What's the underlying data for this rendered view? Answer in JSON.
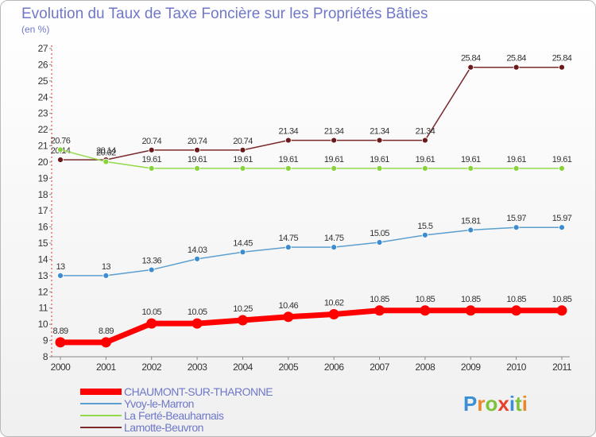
{
  "chart_data": {
    "type": "line",
    "title": "Evolution du Taux de Taxe Foncière sur les Propriétés Bâties",
    "unit_label": "(en %)",
    "x": [
      "2000",
      "2001",
      "2002",
      "2003",
      "2004",
      "2005",
      "2006",
      "2007",
      "2008",
      "2009",
      "2010",
      "2011"
    ],
    "ylim": [
      8,
      27
    ],
    "yticks": [
      8,
      9,
      10,
      11,
      12,
      13,
      14,
      15,
      16,
      17,
      18,
      19,
      20,
      21,
      22,
      23,
      24,
      25,
      26,
      27
    ],
    "grid": false,
    "legend_position": "bottom-left",
    "series": [
      {
        "name": "CHAUMONT-SUR-THARONNE",
        "color": "#ff0000",
        "marker_color": "#ff0000",
        "width": 7,
        "values": [
          8.89,
          8.89,
          10.05,
          10.05,
          10.25,
          10.46,
          10.62,
          10.85,
          10.85,
          10.85,
          10.85,
          10.85
        ],
        "labels": [
          "8.89",
          "8.89",
          "10.05",
          "10.05",
          "10.25",
          "10.46",
          "10.62",
          "10.85",
          "10.85",
          "10.85",
          "10.85",
          "10.85"
        ]
      },
      {
        "name": "Yvoy-le-Marron",
        "color": "#5b9fd0",
        "marker_color": "#3c8ccf",
        "width": 1.5,
        "values": [
          13,
          13,
          13.36,
          14.03,
          14.45,
          14.75,
          14.75,
          15.05,
          15.5,
          15.81,
          15.97,
          15.97
        ],
        "labels": [
          "13",
          "13",
          "13.36",
          "14.03",
          "14.45",
          "14.75",
          "14.75",
          "15.05",
          "15.5",
          "15.81",
          "15.97",
          "15.97"
        ]
      },
      {
        "name": "La Ferté-Beauharnais",
        "color": "#93d94a",
        "marker_color": "#86d33c",
        "width": 1.5,
        "values": [
          20.76,
          20.02,
          19.61,
          19.61,
          19.61,
          19.61,
          19.61,
          19.61,
          19.61,
          19.61,
          19.61,
          19.61
        ],
        "labels": [
          "20.76",
          "20.02",
          "19.61",
          "19.61",
          "19.61",
          "19.61",
          "19.61",
          "19.61",
          "19.61",
          "19.61",
          "19.61",
          "19.61"
        ]
      },
      {
        "name": "Lamotte-Beuvron",
        "color": "#7a2a2a",
        "marker_color": "#6a1a1a",
        "width": 1.5,
        "values": [
          20.14,
          20.14,
          20.74,
          20.74,
          20.74,
          21.34,
          21.34,
          21.34,
          21.34,
          25.84,
          25.84,
          25.84
        ],
        "labels": [
          "20.14",
          "20.14",
          "20.74",
          "20.74",
          "20.74",
          "21.34",
          "21.34",
          "21.34",
          "21.34",
          "25.84",
          "25.84",
          "25.84"
        ]
      }
    ]
  },
  "brand": {
    "text": "Proxiti"
  }
}
